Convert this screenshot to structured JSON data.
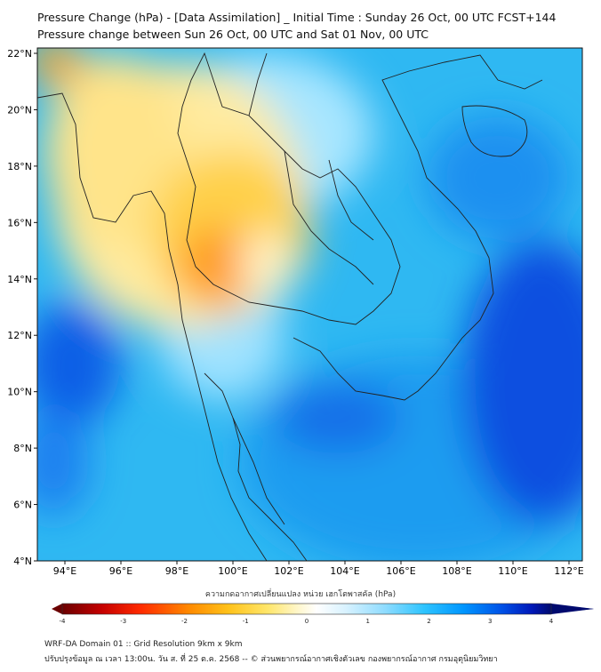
{
  "title_line1": "Pressure Change (hPa) - [Data Assimilation] _ Initial Time : Sunday 26 Oct, 00 UTC FCST+144",
  "title_line2": "Pressure change between Sun 26 Oct, 00 UTC and Sat 01 Nov, 00 UTC",
  "lat_labels": [
    "22°N",
    "20°N",
    "18°N",
    "16°N",
    "14°N",
    "12°N",
    "10°N",
    "8°N",
    "6°N",
    "4°N"
  ],
  "lon_labels": [
    "94°E",
    "96°E",
    "98°E",
    "100°E",
    "102°E",
    "104°E",
    "106°E",
    "108°E",
    "110°E",
    "112°E"
  ],
  "colorbar": {
    "title": "ความกดอากาศเปลี่ยนแปลง หน่วย เฮกโตพาสคัล (hPa)",
    "ticks": [
      "-4",
      "-3",
      "-2",
      "-1",
      "0",
      "1",
      "2",
      "3",
      "4"
    ],
    "range": [
      -4,
      4
    ],
    "colors": [
      "#6b0000",
      "#c40000",
      "#ff2a00",
      "#ff8a00",
      "#ffc21a",
      "#ffe66a",
      "#fff6c8",
      "#ffffff",
      "#d8f2ff",
      "#8fdcff",
      "#2ec4ff",
      "#0096ff",
      "#0050e6",
      "#0018b8",
      "#000a6e"
    ]
  },
  "footer_line1": "WRF-DA Domain 01 :: Grid Resolution 9km x 9km",
  "footer_line2": "ปรับปรุงข้อมูล ณ เวลา 13:00น. วัน ส. ที่ 25 ต.ค. 2568 -- © ส่วนพยากรณ์อากาศเชิงตัวเลข กองพยากรณ์อากาศ กรมอุตุนิยมวิทยา"
}
